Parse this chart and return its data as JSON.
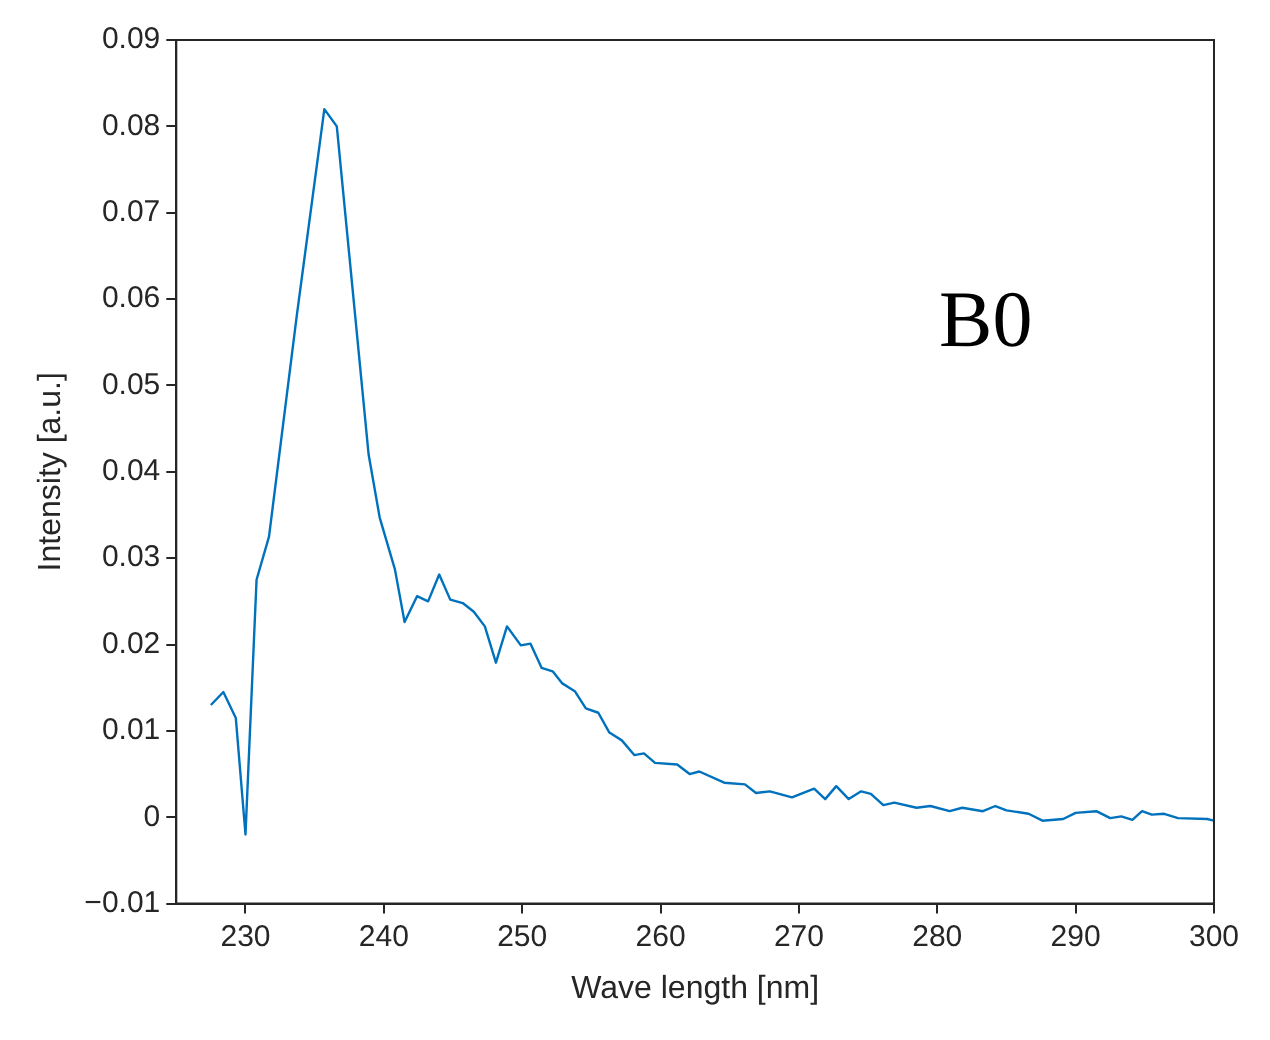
{
  "chart_data": {
    "type": "line",
    "xlabel": "Wave length [nm]",
    "ylabel": "Intensity [a.u.]",
    "annotations": [
      "B0"
    ],
    "xlim": [
      225,
      300
    ],
    "xticks": [
      230,
      240,
      250,
      260,
      270,
      280,
      290,
      300
    ],
    "ylim": [
      -0.01,
      0.09
    ],
    "yticks": [
      {
        "value": -0.01,
        "label": "−0.01"
      },
      0,
      0.01,
      0.02,
      0.03,
      0.04,
      0.05,
      0.06,
      0.07,
      0.08,
      0.09
    ],
    "grid": false,
    "legend": false,
    "marker": "none",
    "line_style": "solid",
    "series": [
      {
        "color": "#0072bd",
        "x": [
          227.5,
          228.4,
          229.3,
          230.0,
          230.8,
          231.7,
          233.7,
          235.7,
          236.6,
          238.9,
          239.7,
          240.8,
          241.5,
          242.4,
          243.2,
          244.0,
          244.8,
          245.7,
          246.5,
          247.3,
          248.1,
          248.9,
          249.9,
          250.6,
          251.4,
          252.2,
          252.9,
          253.8,
          254.6,
          255.5,
          256.3,
          257.2,
          258.1,
          258.8,
          259.6,
          261.2,
          262.1,
          262.8,
          264.6,
          266.1,
          266.9,
          267.9,
          269.5,
          271.1,
          271.9,
          272.7,
          273.6,
          274.5,
          275.2,
          276.1,
          276.9,
          278.5,
          279.5,
          280.9,
          281.8,
          283.3,
          284.2,
          285.0,
          286.6,
          287.6,
          289.1,
          290.0,
          291.5,
          292.5,
          293.3,
          294.1,
          294.8,
          295.5,
          296.4,
          297.4,
          299.5,
          300.0
        ],
        "values": [
          0.013,
          0.0145,
          0.0115,
          -0.002,
          0.0275,
          0.0325,
          0.058,
          0.082,
          0.08,
          0.042,
          0.0347,
          0.0287,
          0.0226,
          0.0256,
          0.025,
          0.0281,
          0.0252,
          0.0248,
          0.0238,
          0.0221,
          0.0179,
          0.0221,
          0.0199,
          0.0201,
          0.0173,
          0.0169,
          0.0155,
          0.0146,
          0.0126,
          0.0121,
          0.0098,
          0.0089,
          0.0072,
          0.0074,
          0.0063,
          0.0061,
          0.005,
          0.0053,
          0.004,
          0.0038,
          0.0028,
          0.003,
          0.0023,
          0.0033,
          0.0021,
          0.0036,
          0.0021,
          0.003,
          0.0027,
          0.0014,
          0.0017,
          0.0011,
          0.0013,
          0.0007,
          0.0011,
          0.0007,
          0.0013,
          0.0008,
          0.0004,
          -0.0004,
          -0.0002,
          0.0005,
          0.0007,
          -0.0001,
          0.0001,
          -0.0003,
          0.0007,
          0.0003,
          0.0004,
          -0.0001,
          -0.0002,
          -0.0004
        ]
      }
    ]
  }
}
